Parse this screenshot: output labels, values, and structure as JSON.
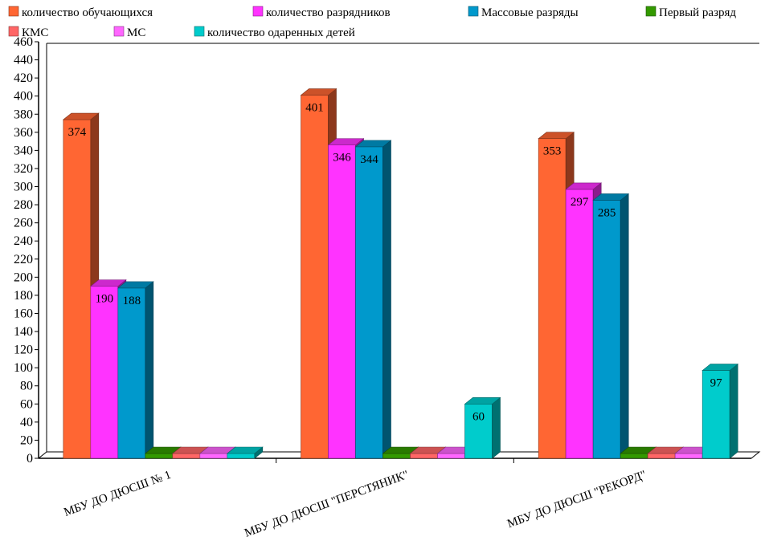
{
  "chart_data": {
    "type": "bar",
    "title": "",
    "xlabel": "",
    "ylabel": "",
    "ylim": [
      0,
      460
    ],
    "ytick_step": 20,
    "grid": false,
    "legend_position": "top",
    "categories": [
      "МБУ ДО ДЮСШ № 1",
      "МБУ ДО ДЮСШ \"ПЕРСТЯНИК\"",
      "МБУ ДО  ДЮСШ \"РЕКОРД\""
    ],
    "series": [
      {
        "name": "количество обучающихся",
        "color": "#ff6633",
        "values": [
          374,
          401,
          353
        ],
        "labels": [
          "374",
          "401",
          "353"
        ]
      },
      {
        "name": "количество разрядников",
        "color": "#ff33ff",
        "values": [
          190,
          346,
          297
        ],
        "labels": [
          "190",
          "346",
          "297"
        ]
      },
      {
        "name": "Массовые разряды",
        "color": "#0099cc",
        "values": [
          188,
          344,
          285
        ],
        "labels": [
          "188",
          "344",
          "285"
        ]
      },
      {
        "name": "Первый разряд",
        "color": "#339900",
        "values": [
          0,
          0,
          5
        ],
        "labels": [
          "",
          "",
          ""
        ]
      },
      {
        "name": "КМС",
        "color": "#ff6666",
        "values": [
          0,
          0,
          0
        ],
        "labels": [
          "",
          "",
          ""
        ]
      },
      {
        "name": "МС",
        "color": "#ff66ff",
        "values": [
          0,
          0,
          0
        ],
        "labels": [
          "",
          "",
          ""
        ]
      },
      {
        "name": "количество одаренных детей",
        "color": "#00cccc",
        "values": [
          5,
          60,
          97
        ],
        "labels": [
          "",
          "60",
          "97"
        ]
      }
    ]
  }
}
